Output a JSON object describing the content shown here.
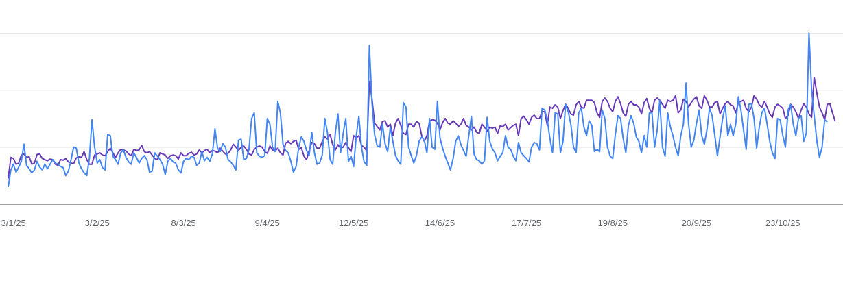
{
  "chart_data": {
    "type": "line",
    "title": "",
    "xlabel": "",
    "ylabel": "",
    "x_tick_labels": [
      "3/1/25",
      "3/2/25",
      "8/3/25",
      "9/4/25",
      "12/5/25",
      "14/6/25",
      "17/7/25",
      "19/8/25",
      "20/9/25",
      "23/10/25"
    ],
    "x_tick_days": [
      2,
      34,
      67,
      99,
      132,
      165,
      198,
      231,
      263,
      296
    ],
    "x_range_days": [
      0,
      319
    ],
    "y_range": [
      0,
      300
    ],
    "gridlines": [
      100,
      200,
      300
    ],
    "grid": true,
    "legend": "none",
    "series": [
      {
        "color": "#673ab7",
        "values": [
          45,
          82,
          80,
          70,
          72,
          86,
          88,
          82,
          83,
          70,
          72,
          87,
          88,
          80,
          78,
          76,
          79,
          78,
          70,
          68,
          78,
          77,
          80,
          74,
          72,
          71,
          81,
          83,
          82,
          92,
          78,
          70,
          70,
          86,
          88,
          90,
          86,
          85,
          92,
          98,
          90,
          82,
          90,
          96,
          95,
          93,
          88,
          85,
          96,
          94,
          95,
          103,
          92,
          90,
          92,
          86,
          80,
          78,
          90,
          88,
          86,
          80,
          85,
          86,
          85,
          79,
          90,
          85,
          85,
          89,
          91,
          86,
          88,
          95,
          90,
          94,
          96,
          90,
          94,
          93,
          90,
          98,
          93,
          88,
          89,
          95,
          105,
          100,
          94,
          100,
          102,
          96,
          88,
          86,
          96,
          100,
          102,
          100,
          92,
          89,
          102,
          95,
          93,
          98,
          90,
          86,
          107,
          110,
          106,
          110,
          112,
          96,
          99,
          84,
          78,
          94,
          108,
          106,
          98,
          98,
          110,
          118,
          114,
          122,
          104,
          95,
          104,
          98,
          100,
          108,
          99,
          92,
          120,
          116,
          120,
          103,
          100,
          93,
          215,
          185,
          142,
          136,
          130,
          145,
          146,
          135,
          140,
          120,
          142,
          150,
          138,
          124,
          122,
          140,
          140,
          135,
          145,
          142,
          120,
          110,
          120,
          145,
          148,
          147,
          142,
          130,
          143,
          150,
          142,
          140,
          146,
          142,
          136,
          140,
          150,
          138,
          135,
          130,
          135,
          126,
          124,
          140,
          135,
          128,
          135,
          133,
          135,
          124,
          137,
          136,
          140,
          130,
          134,
          138,
          140,
          120,
          150,
          154,
          148,
          140,
          152,
          156,
          150,
          150,
          162,
          162,
          138,
          170,
          168,
          174,
          170,
          150,
          164,
          175,
          168,
          158,
          156,
          174,
          180,
          170,
          168,
          182,
          182,
          182,
          178,
          160,
          152,
          180,
          186,
          180,
          168,
          162,
          180,
          188,
          176,
          160,
          154,
          175,
          180,
          174,
          174,
          170,
          158,
          178,
          185,
          168,
          160,
          182,
          186,
          182,
          175,
          168,
          182,
          180,
          182,
          190,
          160,
          165,
          184,
          180,
          170,
          178,
          184,
          188,
          172,
          168,
          190,
          182,
          170,
          170,
          178,
          180,
          158,
          168,
          176,
          180,
          174,
          172,
          160,
          178,
          180,
          182,
          168,
          162,
          170,
          190,
          184,
          174,
          170,
          180,
          170,
          158,
          152,
          170,
          175,
          172,
          168,
          150,
          155,
          175,
          170,
          162,
          150,
          165,
          176,
          170,
          158,
          152,
          222,
          195,
          170,
          160,
          148,
          175,
          176,
          160,
          145
        ]
      },
      {
        "color": "#4285f4",
        "values": [
          30,
          60,
          70,
          56,
          65,
          75,
          105,
          68,
          62,
          55,
          60,
          75,
          65,
          60,
          70,
          62,
          70,
          78,
          72,
          70,
          66,
          64,
          50,
          58,
          78,
          100,
          98,
          72,
          62,
          55,
          50,
          80,
          148,
          100,
          72,
          78,
          64,
          60,
          122,
          120,
          84,
          78,
          70,
          90,
          95,
          82,
          74,
          70,
          90,
          82,
          72,
          80,
          85,
          78,
          56,
          58,
          90,
          84,
          78,
          70,
          52,
          75,
          80,
          74,
          72,
          60,
          55,
          75,
          80,
          78,
          84,
          82,
          68,
          72,
          92,
          76,
          82,
          75,
          88,
          132,
          98,
          92,
          106,
          100,
          78,
          74,
          68,
          60,
          112,
          114,
          78,
          80,
          96,
          150,
          160,
          90,
          84,
          82,
          85,
          150,
          140,
          100,
          92,
          180,
          160,
          105,
          94,
          90,
          75,
          56,
          66,
          100,
          118,
          110,
          94,
          85,
          126,
          90,
          70,
          72,
          86,
          150,
          125,
          78,
          70,
          125,
          158,
          90,
          124,
          150,
          75,
          84,
          66,
          120,
          154,
          100,
          74,
          68,
          278,
          178,
          122,
          102,
          100,
          140,
          106,
          92,
          135,
          110,
          85,
          76,
          70,
          178,
          170,
          100,
          85,
          72,
          85,
          110,
          118,
          112,
          90,
          150,
          100,
          96,
          180,
          116,
          98,
          84,
          72,
          60,
          80,
          110,
          120,
          104,
          94,
          84,
          120,
          154,
          88,
          78,
          76,
          70,
          76,
          152,
          110,
          97,
          90,
          76,
          84,
          90,
          120,
          100,
          96,
          84,
          76,
          108,
          90,
          85,
          80,
          74,
          100,
          108,
          106,
          95,
          168,
          165,
          148,
          115,
          90,
          160,
          158,
          90,
          110,
          175,
          162,
          140,
          100,
          90,
          160,
          168,
          135,
          120,
          146,
          138,
          92,
          96,
          92,
          165,
          150,
          100,
          84,
          80,
          122,
          155,
          150,
          115,
          90,
          138,
          155,
          142,
          118,
          110,
          90,
          120,
          100,
          160,
          160,
          100,
          130,
          182,
          100,
          84,
          160,
          136,
          120,
          100,
          85,
          120,
          140,
          212,
          140,
          100,
          112,
          142,
          165,
          120,
          105,
          130,
          168,
          155,
          120,
          85,
          118,
          150,
          172,
          120,
          140,
          120,
          140,
          188,
          165,
          130,
          96,
          175,
          176,
          150,
          98,
          135,
          160,
          168,
          140,
          110,
          90,
          80,
          150,
          148,
          120,
          100,
          165,
          175,
          140,
          120,
          150,
          155,
          110,
          125,
          300,
          200,
          155,
          112,
          82,
          100,
          148,
          144
        ]
      }
    ]
  }
}
